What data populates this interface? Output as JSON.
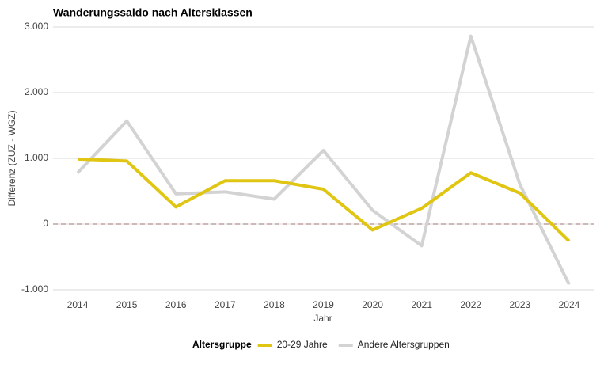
{
  "chart_data": {
    "type": "line",
    "title": "Wanderungssaldo nach Altersklassen",
    "x_label": "Jahr",
    "y_label": "Differenz (ZUZ - WGZ)",
    "legend_title": "Altersgruppe",
    "legend_position": "bottom",
    "categories": [
      "2014",
      "2015",
      "2016",
      "2017",
      "2018",
      "2019",
      "2020",
      "2021",
      "2022",
      "2023",
      "2024"
    ],
    "series": [
      {
        "name": "Andere Altersgruppen",
        "color": "#d3d3d3",
        "values": [
          780,
          1570,
          460,
          490,
          380,
          1120,
          210,
          -330,
          2860,
          600,
          -920
        ]
      },
      {
        "name": "20-29 Jahre",
        "color": "#e0c612",
        "values": [
          990,
          960,
          260,
          660,
          660,
          530,
          -90,
          240,
          780,
          470,
          -260
        ]
      }
    ],
    "legend_order": [
      1,
      0
    ],
    "ylim": [
      -1000,
      3000
    ],
    "yticks": [
      {
        "value": -1000,
        "label": "-1.000"
      },
      0,
      {
        "value": 1000,
        "label": "1.000"
      },
      {
        "value": 2000,
        "label": "2.000"
      },
      {
        "value": 3000,
        "label": "3.000"
      }
    ],
    "reference_line": 0,
    "reference_color": "#a07070",
    "grid": true
  }
}
